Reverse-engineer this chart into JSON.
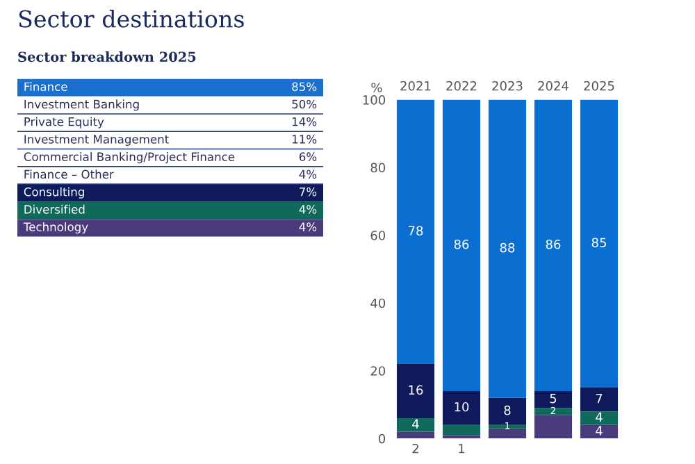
{
  "chart_data": [
    {
      "type": "other",
      "title": "Sector destinations",
      "subtitle": "Sector breakdown 2025",
      "categories": [
        "Finance",
        "Investment Banking",
        "Private Equity",
        "Investment Management",
        "Commercial Banking/Project Finance",
        "Finance – Other",
        "Consulting",
        "Diversified",
        "Technology"
      ],
      "value_labels": [
        "85%",
        "50%",
        "14%",
        "11%",
        "6%",
        "4%",
        "7%",
        "4%",
        "4%"
      ],
      "colors": [
        "#1b6fcf",
        "#ffffff",
        "#ffffff",
        "#ffffff",
        "#ffffff",
        "#ffffff",
        "#0e1a5c",
        "#0f6a5b",
        "#4a3b7c"
      ]
    },
    {
      "type": "bar",
      "stacked": true,
      "ylabel": "%",
      "categories": [
        "2021",
        "2022",
        "2023",
        "2024",
        "2025"
      ],
      "series": [
        {
          "color": "#4a3b7c",
          "values": [
            2,
            1,
            3,
            7,
            4
          ],
          "value_labels": [
            "2",
            "1",
            null,
            null,
            "4"
          ]
        },
        {
          "color": "#0f6a5b",
          "values": [
            4,
            3,
            1,
            2,
            4
          ],
          "value_labels": [
            "4",
            null,
            "1",
            "2",
            "4"
          ]
        },
        {
          "color": "#0e1a5c",
          "values": [
            16,
            10,
            8,
            5,
            7
          ],
          "value_labels": [
            "16",
            "10",
            "8",
            "5",
            "7"
          ]
        },
        {
          "color": "#0a6fd0",
          "values": [
            78,
            86,
            88,
            86,
            85
          ],
          "value_labels": [
            "78",
            "86",
            "88",
            "86",
            "85"
          ]
        }
      ],
      "ylim": [
        0,
        100
      ],
      "yticks": [
        0,
        20,
        40,
        60,
        80,
        100
      ],
      "grid": false
    }
  ]
}
